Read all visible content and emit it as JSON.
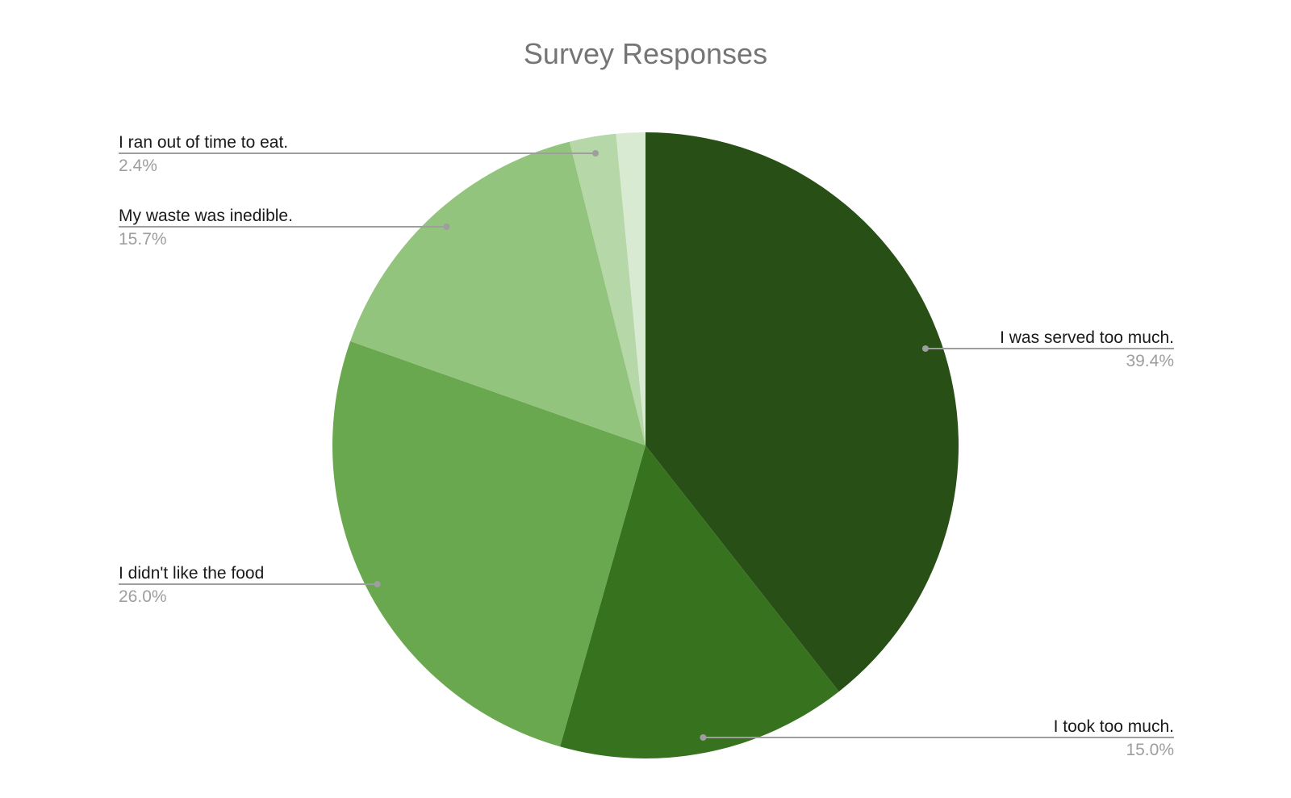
{
  "chart_data": {
    "type": "pie",
    "title": "Survey Responses",
    "start_angle": "12 o'clock",
    "direction": "clockwise",
    "slices": [
      {
        "label": "I was served too much.",
        "value": 39.4,
        "value_label": "39.4%",
        "color": "#284f16"
      },
      {
        "label": "I took too much.",
        "value": 15.0,
        "value_label": "15.0%",
        "color": "#37731e"
      },
      {
        "label": "I didn't like the food",
        "value": 26.0,
        "value_label": "26.0%",
        "color": "#6aa84f"
      },
      {
        "label": "My waste was inedible.",
        "value": 15.7,
        "value_label": "15.7%",
        "color": "#93c47d"
      },
      {
        "label": "I ran out of time to eat.",
        "value": 2.4,
        "value_label": "2.4%",
        "color": "#b6d7a8"
      },
      {
        "label": "",
        "value": 1.5,
        "value_label": "",
        "color": "#d9ead3"
      }
    ]
  }
}
